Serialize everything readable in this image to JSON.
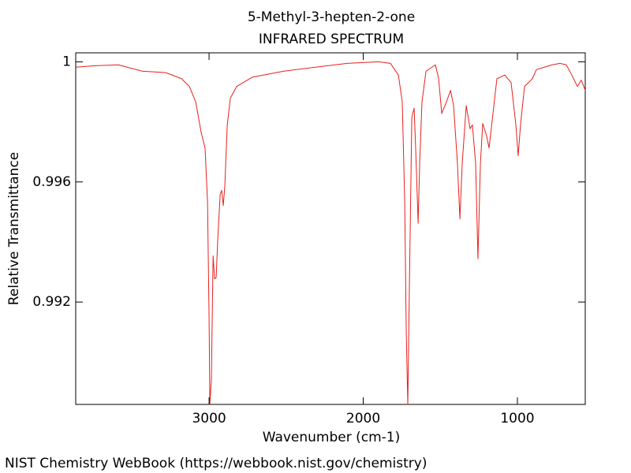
{
  "chart_data": {
    "type": "line",
    "title": "5-Methyl-3-hepten-2-one",
    "subtitle": "INFRARED SPECTRUM",
    "x_label": "Wavenumber (cm-1)",
    "y_label": "Relative Transmittance",
    "source": "NIST Chemistry WebBook (https://webbook.nist.gov/chemistry)",
    "xlim": [
      3865,
      560
    ],
    "ylim": [
      0.98859,
      1.0003
    ],
    "xticks": [
      3000,
      2000,
      1000
    ],
    "yticks": [
      0.992,
      0.996,
      1
    ],
    "grid": false,
    "x": [
      3864,
      3741,
      3588,
      3435,
      3281,
      3179,
      3128,
      3087,
      3051,
      3026,
      3010,
      3000,
      2995,
      2985,
      2974,
      2964,
      2954,
      2944,
      2928,
      2918,
      2908,
      2898,
      2882,
      2862,
      2821,
      2719,
      2514,
      2310,
      2105,
      1900,
      1824,
      1772,
      1747,
      1731,
      1721,
      1711,
      1700,
      1685,
      1670,
      1660,
      1644,
      1634,
      1619,
      1593,
      1532,
      1511,
      1491,
      1460,
      1434,
      1414,
      1389,
      1373,
      1358,
      1332,
      1307,
      1292,
      1271,
      1256,
      1240,
      1225,
      1199,
      1184,
      1164,
      1133,
      1082,
      1041,
      1010,
      995,
      980,
      954,
      928,
      903,
      877,
      826,
      775,
      724,
      683,
      647,
      611,
      586,
      560
    ],
    "series": [
      {
        "name": "5-Methyl-3-hepten-2-one",
        "color": "#e8201c",
        "values": [
          0.99982,
          0.99987,
          0.9999,
          0.99969,
          0.99964,
          0.99944,
          0.99918,
          0.99867,
          0.99764,
          0.99713,
          0.99533,
          0.99149,
          0.98859,
          0.98944,
          0.99354,
          0.99277,
          0.99282,
          0.99405,
          0.99559,
          0.99572,
          0.99521,
          0.99585,
          0.9979,
          0.99879,
          0.99918,
          0.99949,
          0.99969,
          0.99982,
          0.99995,
          1.0,
          0.99995,
          0.99956,
          0.99867,
          0.99533,
          0.99097,
          0.98859,
          0.99277,
          0.99815,
          0.99846,
          0.99713,
          0.99462,
          0.99662,
          0.99867,
          0.99969,
          0.9999,
          0.99944,
          0.99828,
          0.99867,
          0.99905,
          0.99854,
          0.99662,
          0.99477,
          0.99662,
          0.99854,
          0.99777,
          0.9979,
          0.99662,
          0.99344,
          0.99662,
          0.99795,
          0.99751,
          0.99713,
          0.99803,
          0.99944,
          0.99956,
          0.99931,
          0.9979,
          0.99687,
          0.9979,
          0.99918,
          0.99931,
          0.99944,
          0.99974,
          0.99982,
          0.9999,
          0.99995,
          0.9999,
          0.99956,
          0.99918,
          0.99939,
          0.99905
        ]
      }
    ]
  }
}
